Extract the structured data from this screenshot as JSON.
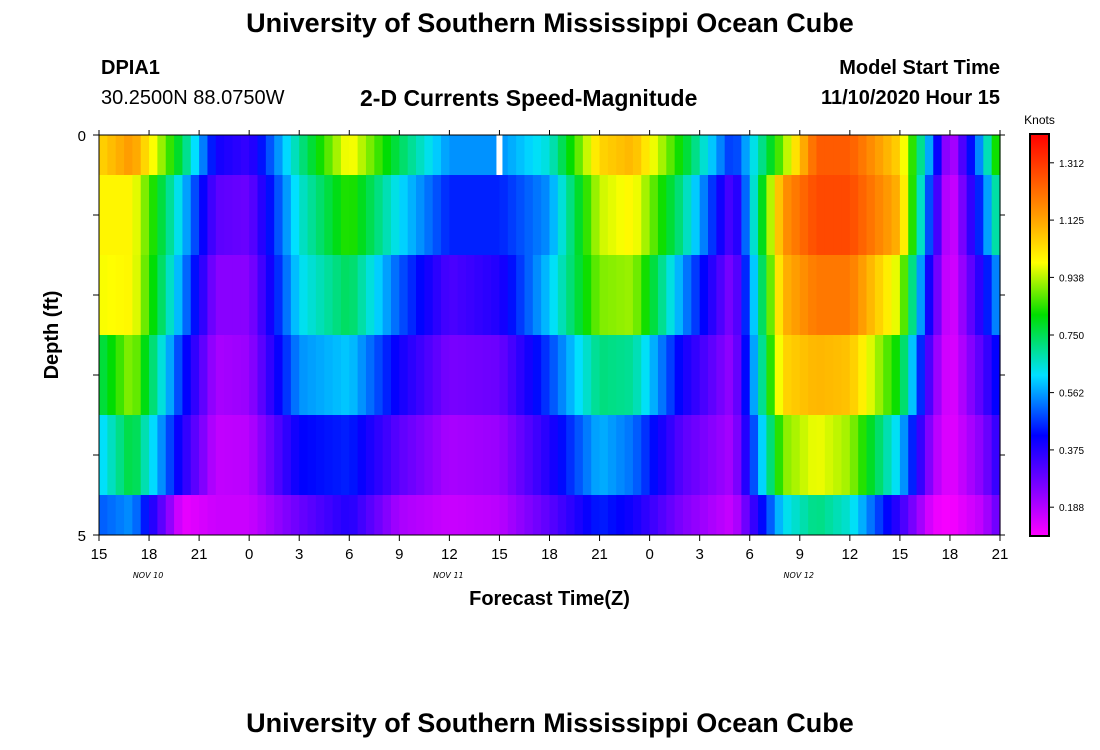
{
  "header": {
    "title": "University of Southern Mississippi Ocean Cube",
    "station_id": "DPIA1",
    "station_coords": "30.2500N 88.0750W",
    "plot_title": "2-D Currents Speed-Magnitude",
    "model_start_label": "Model Start Time",
    "model_start_value": "11/10/2020 Hour 15"
  },
  "footer": {
    "title": "University of Southern Mississippi Ocean Cube"
  },
  "chart_data": {
    "type": "heatmap",
    "title": "2-D Currents Speed-Magnitude",
    "xlabel": "Forecast Time(Z)",
    "ylabel": "Depth (ft)",
    "y_ticks": [
      "0",
      "5"
    ],
    "ylim": [
      0,
      5
    ],
    "x_ticks": [
      "15",
      "18",
      "21",
      "0",
      "3",
      "6",
      "9",
      "12",
      "15",
      "18",
      "21",
      "0",
      "3",
      "6",
      "9",
      "12",
      "15",
      "18",
      "21"
    ],
    "date_labels": [
      {
        "text": "NOV 10",
        "tick_index": 1
      },
      {
        "text": "NOV 11",
        "tick_index": 7
      },
      {
        "text": "NOV 12",
        "tick_index": 14
      }
    ],
    "colorbar": {
      "unit": "Knots",
      "min": 0.094,
      "max": 1.406,
      "ticks": [
        "0.188",
        "0.375",
        "0.562",
        "0.750",
        "0.938",
        "1.125",
        "1.312"
      ],
      "tick_values": [
        0.188,
        0.375,
        0.562,
        0.75,
        0.938,
        1.125,
        1.312
      ]
    },
    "x_hours_start": 15,
    "x_hours_end": 69,
    "depth_layers": [
      {
        "depth_range": [
          0,
          0.5
        ],
        "x": [
          15,
          17,
          20,
          22,
          24,
          27,
          30,
          33,
          36,
          39,
          42,
          45,
          47,
          50,
          53,
          56,
          58,
          60,
          63,
          65,
          66,
          68,
          69
        ],
        "speed": [
          1.05,
          1.15,
          0.75,
          0.4,
          0.35,
          0.7,
          1.0,
          0.75,
          0.55,
          0.55,
          0.65,
          1.05,
          1.1,
          0.8,
          0.45,
          0.9,
          1.25,
          1.25,
          1.05,
          0.5,
          0.15,
          0.6,
          0.9
        ]
      },
      {
        "depth_range": [
          0.5,
          1.5
        ],
        "x": [
          15,
          17,
          20,
          22,
          24,
          27,
          30,
          33,
          36,
          39,
          42,
          45,
          47,
          50,
          53,
          56,
          58,
          60,
          63,
          65,
          66,
          68,
          69
        ],
        "speed": [
          1.0,
          1.0,
          0.6,
          0.3,
          0.28,
          0.65,
          0.85,
          0.62,
          0.45,
          0.45,
          0.55,
          0.95,
          1.0,
          0.7,
          0.3,
          1.15,
          1.28,
          1.28,
          1.1,
          0.4,
          0.12,
          0.5,
          0.75
        ]
      },
      {
        "depth_range": [
          1.5,
          2.5
        ],
        "x": [
          15,
          17,
          20,
          22,
          24,
          27,
          30,
          33,
          36,
          39,
          42,
          45,
          47,
          50,
          53,
          56,
          58,
          60,
          63,
          65,
          66,
          68,
          69
        ],
        "speed": [
          0.98,
          1.0,
          0.55,
          0.24,
          0.24,
          0.62,
          0.75,
          0.5,
          0.32,
          0.38,
          0.6,
          0.9,
          0.92,
          0.55,
          0.24,
          1.1,
          1.2,
          1.2,
          0.95,
          0.32,
          0.12,
          0.4,
          0.58
        ]
      },
      {
        "depth_range": [
          2.5,
          3.5
        ],
        "x": [
          15,
          17,
          20,
          22,
          24,
          27,
          30,
          33,
          36,
          39,
          42,
          45,
          47,
          50,
          53,
          56,
          58,
          60,
          63,
          65,
          66,
          68,
          69
        ],
        "speed": [
          0.75,
          0.92,
          0.45,
          0.2,
          0.22,
          0.55,
          0.6,
          0.4,
          0.26,
          0.28,
          0.48,
          0.72,
          0.7,
          0.4,
          0.22,
          1.05,
          1.1,
          1.08,
          0.8,
          0.25,
          0.12,
          0.32,
          0.45
        ]
      },
      {
        "depth_range": [
          3.5,
          4.5
        ],
        "x": [
          15,
          17,
          20,
          22,
          24,
          27,
          30,
          33,
          36,
          39,
          42,
          45,
          47,
          50,
          53,
          56,
          58,
          60,
          63,
          65,
          66,
          68,
          69
        ],
        "speed": [
          0.6,
          0.78,
          0.38,
          0.17,
          0.18,
          0.42,
          0.45,
          0.3,
          0.2,
          0.22,
          0.38,
          0.58,
          0.52,
          0.3,
          0.2,
          0.9,
          0.98,
          0.92,
          0.6,
          0.2,
          0.12,
          0.25,
          0.38
        ]
      },
      {
        "depth_range": [
          4.5,
          5
        ],
        "x": [
          15,
          17,
          20,
          22,
          24,
          27,
          30,
          33,
          36,
          39,
          42,
          45,
          47,
          50,
          53,
          56,
          58,
          60,
          63,
          65,
          66,
          68,
          69
        ],
        "speed": [
          0.5,
          0.55,
          0.12,
          0.16,
          0.16,
          0.28,
          0.38,
          0.2,
          0.16,
          0.18,
          0.3,
          0.45,
          0.4,
          0.25,
          0.16,
          0.62,
          0.72,
          0.65,
          0.35,
          0.12,
          0.1,
          0.18,
          0.3
        ]
      }
    ],
    "missing_data": [
      {
        "hour": 39,
        "depth_range": [
          0,
          0.5
        ]
      }
    ]
  }
}
